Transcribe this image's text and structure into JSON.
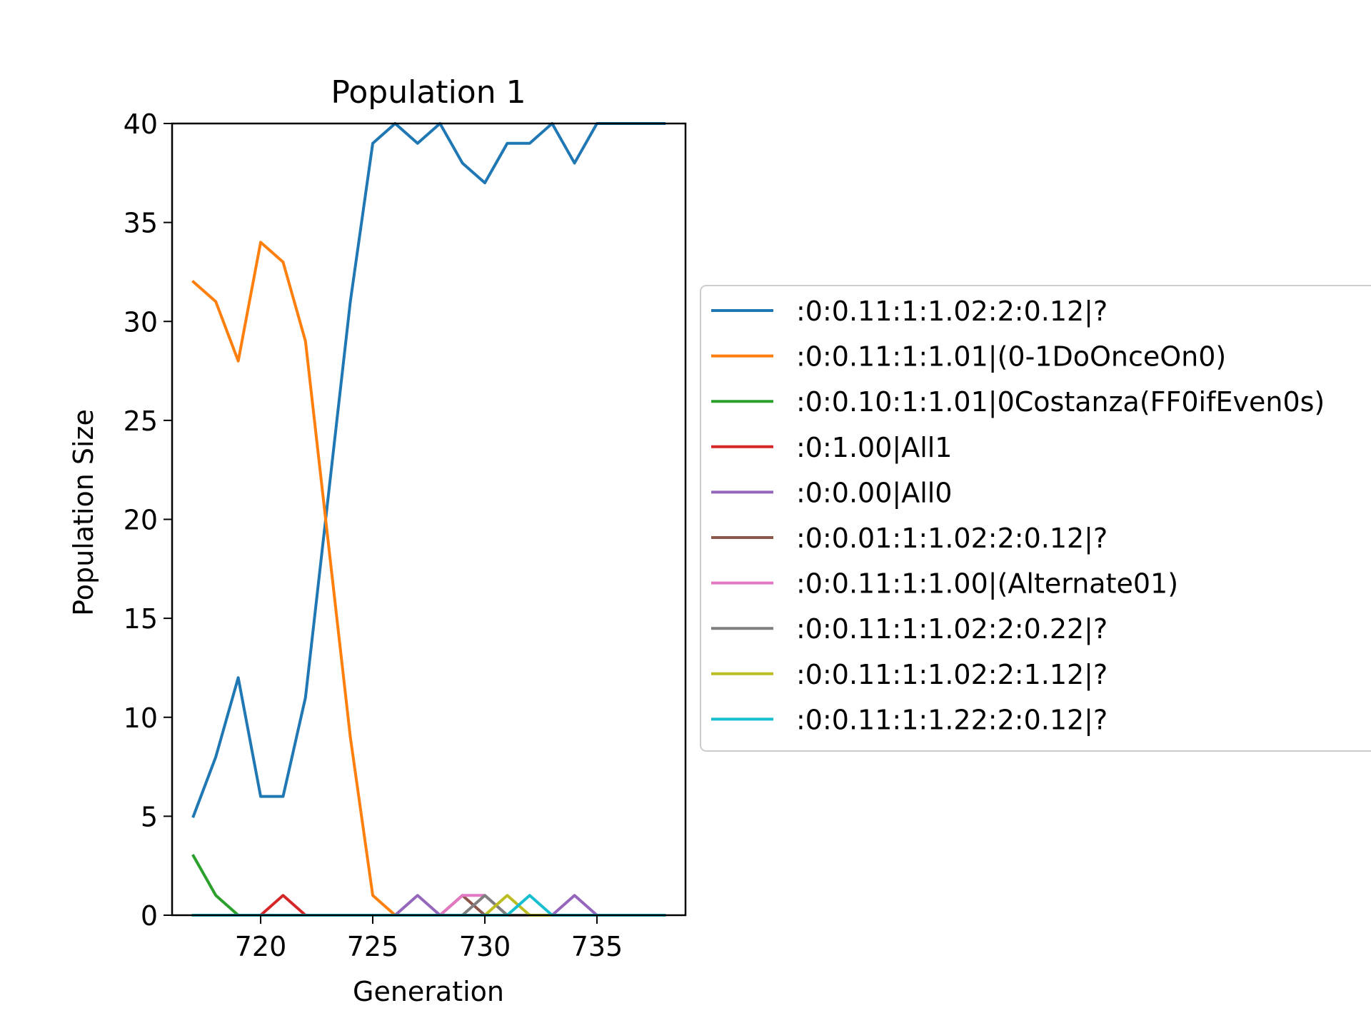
{
  "chart_data": {
    "type": "line",
    "title": "Population 1",
    "xlabel": "Generation",
    "ylabel": "Population Size",
    "xlim": [
      716.05,
      738.95
    ],
    "ylim": [
      0,
      40
    ],
    "x_ticks": [
      720,
      725,
      730,
      735
    ],
    "y_ticks": [
      0,
      5,
      10,
      15,
      20,
      25,
      30,
      35,
      40
    ],
    "x": [
      717,
      718,
      719,
      720,
      721,
      722,
      723,
      724,
      725,
      726,
      727,
      728,
      729,
      730,
      731,
      732,
      733,
      734,
      735,
      736,
      737,
      738
    ],
    "grid": false,
    "legend_position": "outside-right",
    "series": [
      {
        "name": ":0:0.11:1:1.02:2:0.12|?",
        "color": "#1f77b4",
        "values": [
          5,
          8,
          12,
          6,
          6,
          11,
          21,
          31,
          39,
          40,
          39,
          40,
          38,
          37,
          39,
          39,
          40,
          38,
          40,
          40,
          40,
          40
        ]
      },
      {
        "name": ":0:0.11:1:1.01|(0-1DoOnceOn0)",
        "color": "#ff7f0e",
        "values": [
          32,
          31,
          28,
          34,
          33,
          29,
          19,
          9,
          1,
          0,
          0,
          0,
          0,
          0,
          0,
          0,
          0,
          0,
          0,
          0,
          0,
          0
        ]
      },
      {
        "name": ":0:0.10:1:1.01|0Costanza(FF0ifEven0s)",
        "color": "#2ca02c",
        "values": [
          3,
          1,
          0,
          0,
          0,
          0,
          0,
          0,
          0,
          0,
          0,
          0,
          0,
          0,
          0,
          0,
          0,
          0,
          0,
          0,
          0,
          0
        ]
      },
      {
        "name": ":0:1.00|All1",
        "color": "#d62728",
        "values": [
          0,
          0,
          0,
          0,
          1,
          0,
          0,
          0,
          0,
          0,
          0,
          0,
          0,
          0,
          0,
          0,
          0,
          0,
          0,
          0,
          0,
          0
        ]
      },
      {
        "name": ":0:0.00|All0",
        "color": "#9467bd",
        "values": [
          0,
          0,
          0,
          0,
          0,
          0,
          0,
          0,
          0,
          0,
          1,
          0,
          0,
          0,
          0,
          0,
          0,
          1,
          0,
          0,
          0,
          0
        ]
      },
      {
        "name": ":0:0.01:1:1.02:2:0.12|?",
        "color": "#8c564b",
        "values": [
          0,
          0,
          0,
          0,
          0,
          0,
          0,
          0,
          0,
          0,
          0,
          0,
          1,
          0,
          0,
          0,
          0,
          0,
          0,
          0,
          0,
          0
        ]
      },
      {
        "name": ":0:0.11:1:1.00|(Alternate01)",
        "color": "#e377c2",
        "values": [
          0,
          0,
          0,
          0,
          0,
          0,
          0,
          0,
          0,
          0,
          0,
          0,
          1,
          1,
          0,
          0,
          0,
          0,
          0,
          0,
          0,
          0
        ]
      },
      {
        "name": ":0:0.11:1:1.02:2:0.22|?",
        "color": "#7f7f7f",
        "values": [
          0,
          0,
          0,
          0,
          0,
          0,
          0,
          0,
          0,
          0,
          0,
          0,
          0,
          1,
          0,
          0,
          0,
          0,
          0,
          0,
          0,
          0
        ]
      },
      {
        "name": ":0:0.11:1:1.02:2:1.12|?",
        "color": "#bcbd22",
        "values": [
          0,
          0,
          0,
          0,
          0,
          0,
          0,
          0,
          0,
          0,
          0,
          0,
          0,
          0,
          1,
          0,
          0,
          0,
          0,
          0,
          0,
          0
        ]
      },
      {
        "name": ":0:0.11:1:1.22:2:0.12|?",
        "color": "#17becf",
        "values": [
          0,
          0,
          0,
          0,
          0,
          0,
          0,
          0,
          0,
          0,
          0,
          0,
          0,
          0,
          0,
          1,
          0,
          0,
          0,
          0,
          0,
          0
        ]
      }
    ]
  }
}
